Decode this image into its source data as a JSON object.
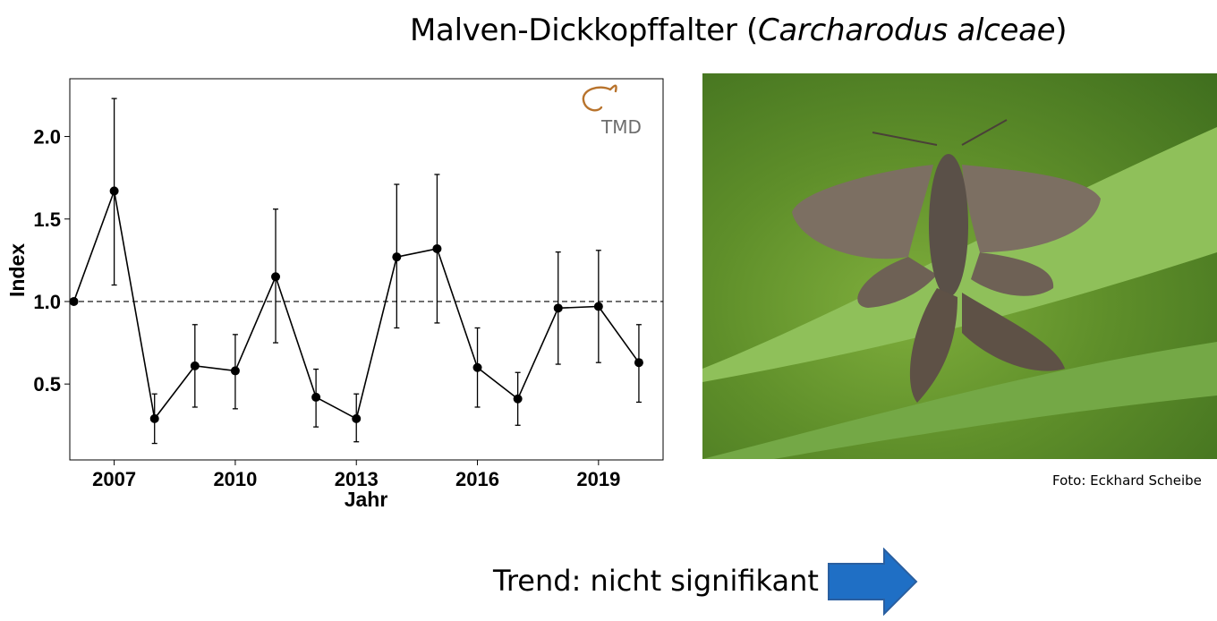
{
  "title": {
    "main": "Malven-Dickkopffalter (",
    "latin": "Carcharodus alceae",
    "close": ")"
  },
  "logo_text": "TMD",
  "photo_credit": "Foto: Eckhard Scheibe",
  "trend_text": "Trend: nicht signifikant",
  "colors": {
    "line": "#000000",
    "arrow": "#1f6fc5",
    "arrow_stroke": "#2a5fa0",
    "logo": "#b8732c"
  },
  "chart_data": {
    "type": "line",
    "xlabel": "Jahr",
    "ylabel": "Index",
    "xlim": [
      2005.9,
      2020.6
    ],
    "ylim": [
      0.04,
      2.35
    ],
    "x_ticks": [
      2007,
      2010,
      2013,
      2016,
      2019
    ],
    "y_ticks": [
      0.5,
      1.0,
      1.5,
      2.0
    ],
    "y_tick_labels": [
      "0.5",
      "1.0",
      "1.5",
      "2.0"
    ],
    "reference_line": 1.0,
    "series": [
      {
        "x": [
          2006,
          2007,
          2008,
          2009,
          2010,
          2011,
          2012,
          2013,
          2014,
          2015,
          2016,
          2017,
          2018,
          2019,
          2020
        ],
        "y": [
          1.0,
          1.67,
          0.29,
          0.61,
          0.58,
          1.15,
          0.42,
          0.29,
          1.27,
          1.32,
          0.6,
          0.41,
          0.96,
          0.97,
          0.63
        ],
        "lower": [
          1.0,
          1.1,
          0.14,
          0.36,
          0.35,
          0.75,
          0.24,
          0.15,
          0.84,
          0.87,
          0.36,
          0.25,
          0.62,
          0.63,
          0.39
        ],
        "upper": [
          1.0,
          2.23,
          0.44,
          0.86,
          0.8,
          1.56,
          0.59,
          0.44,
          1.71,
          1.77,
          0.84,
          0.57,
          1.3,
          1.31,
          0.86
        ]
      }
    ]
  }
}
